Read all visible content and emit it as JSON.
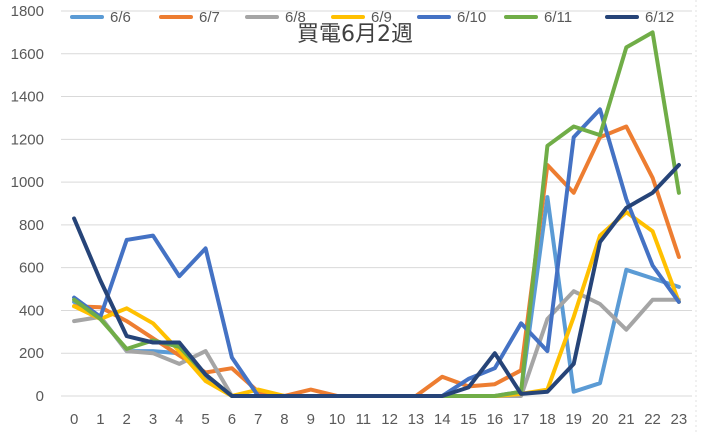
{
  "chart_data": {
    "type": "line",
    "title": "買電6月2週",
    "xlabel": "",
    "ylabel": "",
    "categories": [
      "0",
      "1",
      "2",
      "3",
      "4",
      "5",
      "6",
      "7",
      "8",
      "9",
      "10",
      "11",
      "12",
      "13",
      "14",
      "15",
      "16",
      "17",
      "18",
      "19",
      "20",
      "21",
      "22",
      "23"
    ],
    "ylim": [
      0,
      1800
    ],
    "yticks": [
      0,
      200,
      400,
      600,
      800,
      1000,
      1200,
      1400,
      1600,
      1800
    ],
    "grid": true,
    "legend_position": "top",
    "series": [
      {
        "name": "6/6",
        "color": "#5B9BD5",
        "values": [
          440,
          370,
          210,
          210,
          200,
          90,
          0,
          0,
          0,
          0,
          0,
          0,
          0,
          0,
          0,
          0,
          0,
          20,
          930,
          20,
          60,
          590,
          550,
          510
        ]
      },
      {
        "name": "6/7",
        "color": "#ED7D31",
        "values": [
          420,
          415,
          350,
          270,
          190,
          110,
          130,
          20,
          0,
          30,
          0,
          0,
          0,
          0,
          90,
          45,
          55,
          120,
          1080,
          950,
          1210,
          1260,
          1020,
          650
        ]
      },
      {
        "name": "6/8",
        "color": "#A5A5A5",
        "values": [
          350,
          370,
          210,
          200,
          150,
          210,
          0,
          0,
          0,
          0,
          0,
          0,
          0,
          0,
          0,
          0,
          0,
          0,
          360,
          490,
          430,
          310,
          450,
          450
        ]
      },
      {
        "name": "6/9",
        "color": "#FFC000",
        "values": [
          420,
          360,
          410,
          340,
          210,
          70,
          0,
          30,
          0,
          0,
          0,
          0,
          0,
          0,
          0,
          0,
          0,
          10,
          30,
          370,
          750,
          860,
          770,
          440
        ]
      },
      {
        "name": "6/10",
        "color": "#4472C4",
        "values": [
          460,
          370,
          730,
          750,
          560,
          690,
          180,
          0,
          0,
          0,
          0,
          0,
          0,
          0,
          0,
          80,
          130,
          340,
          210,
          1210,
          1340,
          920,
          610,
          440
        ]
      },
      {
        "name": "6/11",
        "color": "#70AD47",
        "values": [
          450,
          360,
          220,
          260,
          230,
          100,
          0,
          0,
          0,
          0,
          0,
          0,
          0,
          0,
          0,
          0,
          0,
          20,
          1170,
          1260,
          1220,
          1630,
          1700,
          950
        ]
      },
      {
        "name": "6/12",
        "color": "#264478",
        "values": [
          830,
          540,
          280,
          250,
          250,
          100,
          0,
          0,
          0,
          0,
          0,
          0,
          0,
          0,
          0,
          40,
          200,
          10,
          20,
          150,
          720,
          880,
          950,
          1080
        ]
      }
    ]
  }
}
